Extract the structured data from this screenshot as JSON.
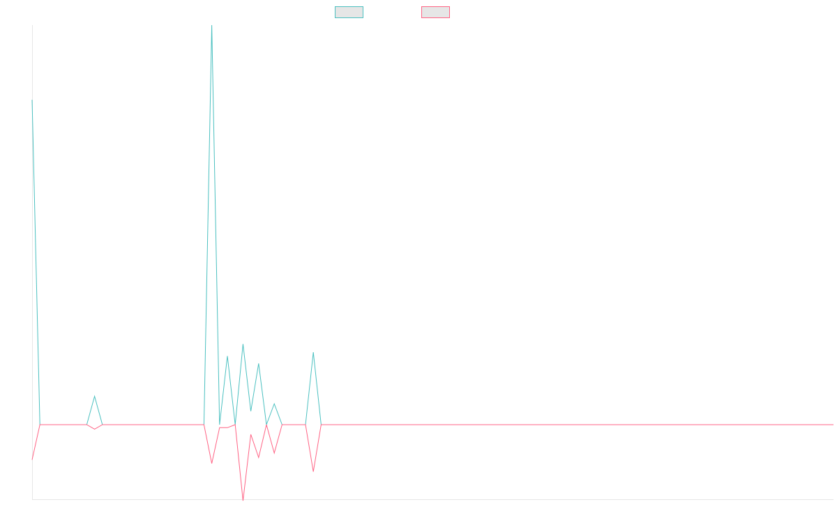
{
  "chart_data": {
    "type": "line",
    "title": "",
    "xlabel": "",
    "ylabel": "",
    "x": [
      0,
      1,
      2,
      3,
      4,
      5,
      6,
      7,
      8,
      9,
      10,
      11,
      12,
      13,
      14,
      15,
      16,
      17,
      18,
      19,
      20,
      21,
      22,
      23,
      24,
      25,
      26,
      27,
      28,
      29,
      30,
      31,
      32,
      33,
      34,
      35,
      36,
      37,
      38,
      39,
      40,
      41,
      42,
      43,
      44,
      45,
      46,
      47,
      48,
      49,
      50,
      51,
      52,
      53,
      54,
      55,
      56,
      57,
      58,
      59,
      60,
      61,
      62,
      63,
      64,
      65,
      66,
      67,
      68,
      69,
      70,
      71,
      72,
      73,
      74,
      75,
      76,
      77,
      78,
      79,
      80,
      81,
      82,
      83,
      84,
      85,
      86,
      87,
      88,
      89,
      90,
      91,
      92,
      93,
      94,
      95,
      96,
      97,
      98,
      99,
      100,
      101,
      102,
      103
    ],
    "xlim": [
      0,
      103
    ],
    "ylim": [
      -100,
      535
    ],
    "grid": false,
    "legend": {
      "position": "top-center"
    },
    "series": [
      {
        "color": "#4bc0c0",
        "values": [
          435,
          0,
          0,
          0,
          0,
          0,
          0,
          0,
          38,
          0,
          0,
          0,
          0,
          0,
          0,
          0,
          0,
          0,
          0,
          0,
          0,
          0,
          0,
          535,
          0,
          92,
          0,
          108,
          18,
          82,
          0,
          28,
          0,
          0,
          0,
          0,
          97,
          0,
          0,
          0,
          0,
          0,
          0,
          0,
          0,
          0,
          0,
          0,
          0,
          0,
          0,
          0,
          0,
          0,
          0,
          0,
          0,
          0,
          0,
          0,
          0,
          0,
          0,
          0,
          0,
          0,
          0,
          0,
          0,
          0,
          0,
          0,
          0,
          0,
          0,
          0,
          0,
          0,
          0,
          0,
          0,
          0,
          0,
          0,
          0,
          0,
          0,
          0,
          0,
          0,
          0,
          0,
          0,
          0,
          0,
          0,
          0,
          0,
          0,
          0,
          0,
          0,
          0,
          0
        ]
      },
      {
        "color": "#ff6384",
        "values": [
          -47,
          0,
          0,
          0,
          0,
          0,
          0,
          0,
          -6,
          0,
          0,
          0,
          0,
          0,
          0,
          0,
          0,
          0,
          0,
          0,
          0,
          0,
          0,
          -52,
          -4,
          -4,
          0,
          -102,
          -13,
          -44,
          0,
          -38,
          0,
          0,
          0,
          0,
          -63,
          0,
          0,
          0,
          0,
          0,
          0,
          0,
          0,
          0,
          0,
          0,
          0,
          0,
          0,
          0,
          0,
          0,
          0,
          0,
          0,
          0,
          0,
          0,
          0,
          0,
          0,
          0,
          0,
          0,
          0,
          0,
          0,
          0,
          0,
          0,
          0,
          0,
          0,
          0,
          0,
          0,
          0,
          0,
          0,
          0,
          0,
          0,
          0,
          0,
          0,
          0,
          0,
          0,
          0,
          0,
          0,
          0,
          0,
          0,
          0,
          0,
          0,
          0,
          0,
          0,
          0,
          0
        ]
      }
    ]
  }
}
